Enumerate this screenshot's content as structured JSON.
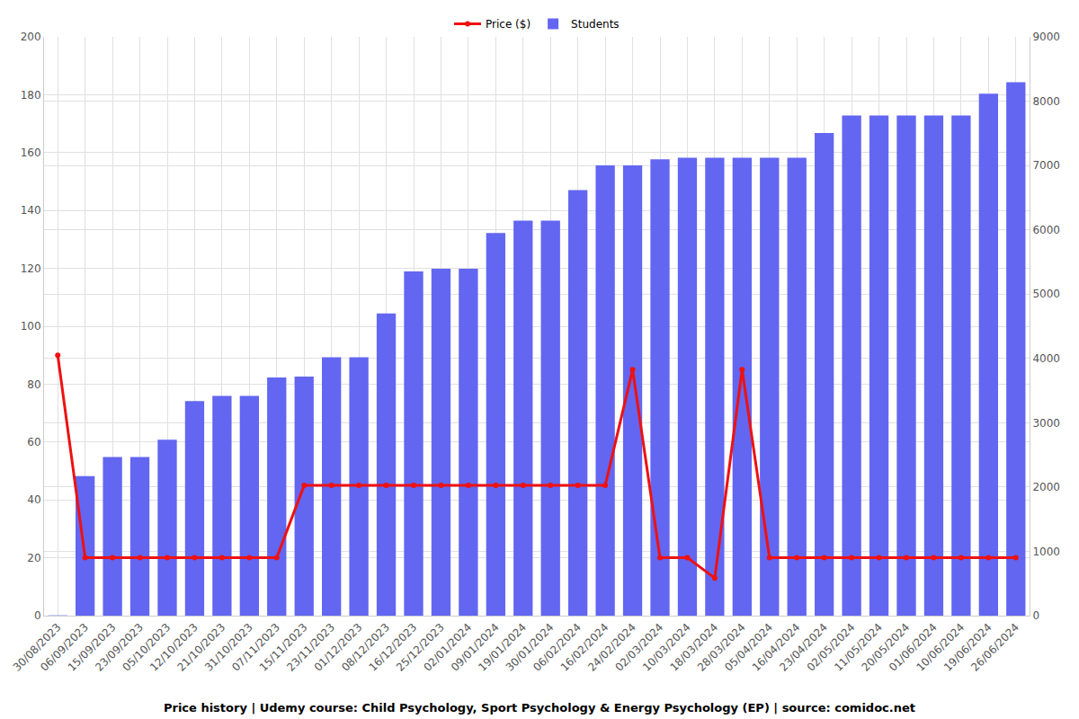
{
  "chart_data": {
    "type": "bar",
    "title": "Price history | Udemy course: Child Psychology, Sport Psychology & Energy Psychology (EP) | source: comidoc.net",
    "categories": [
      "30/08/2023",
      "06/09/2023",
      "15/09/2023",
      "23/09/2023",
      "05/10/2023",
      "12/10/2023",
      "21/10/2023",
      "31/10/2023",
      "07/11/2023",
      "15/11/2023",
      "23/11/2023",
      "01/12/2023",
      "08/12/2023",
      "16/12/2023",
      "25/12/2023",
      "02/01/2024",
      "09/01/2024",
      "19/01/2024",
      "30/01/2024",
      "06/02/2024",
      "16/02/2024",
      "24/02/2024",
      "02/03/2024",
      "10/03/2024",
      "18/03/2024",
      "28/03/2024",
      "05/04/2024",
      "16/04/2024",
      "23/04/2024",
      "02/05/2024",
      "11/05/2024",
      "20/05/2024",
      "01/06/2024",
      "10/06/2024",
      "19/06/2024",
      "26/06/2024"
    ],
    "series": [
      {
        "name": "Price ($)",
        "type": "line",
        "color": "#ee1111",
        "marker": "circle",
        "values": [
          90,
          20,
          20,
          20,
          20,
          20,
          20,
          20,
          20,
          45,
          45,
          45,
          45,
          45,
          45,
          45,
          45,
          45,
          45,
          45,
          45,
          85,
          20,
          20,
          13,
          85,
          20,
          20,
          20,
          20,
          20,
          20,
          20,
          20,
          20,
          20
        ]
      },
      {
        "name": "Students",
        "type": "bar",
        "color": "#6366f1",
        "axis": "y2",
        "values": [
          5,
          2170,
          2465,
          2465,
          2737,
          3337,
          3418,
          3418,
          3704,
          3718,
          4018,
          4018,
          4698,
          5352,
          5393,
          5393,
          5951,
          6142,
          6142,
          6618,
          7000,
          7000,
          7095,
          7122,
          7122,
          7122,
          7122,
          7122,
          7503,
          7776,
          7776,
          7776,
          7776,
          7776,
          8116,
          8293
        ]
      }
    ],
    "ylim": [
      0,
      200
    ],
    "yticks": [
      0,
      20,
      40,
      60,
      80,
      100,
      120,
      140,
      160,
      180,
      200
    ],
    "y2lim": [
      0,
      9000
    ],
    "y2ticks": [
      0,
      1000,
      2000,
      3000,
      4000,
      5000,
      6000,
      7000,
      8000,
      9000
    ],
    "grid": true,
    "legend": "top"
  }
}
